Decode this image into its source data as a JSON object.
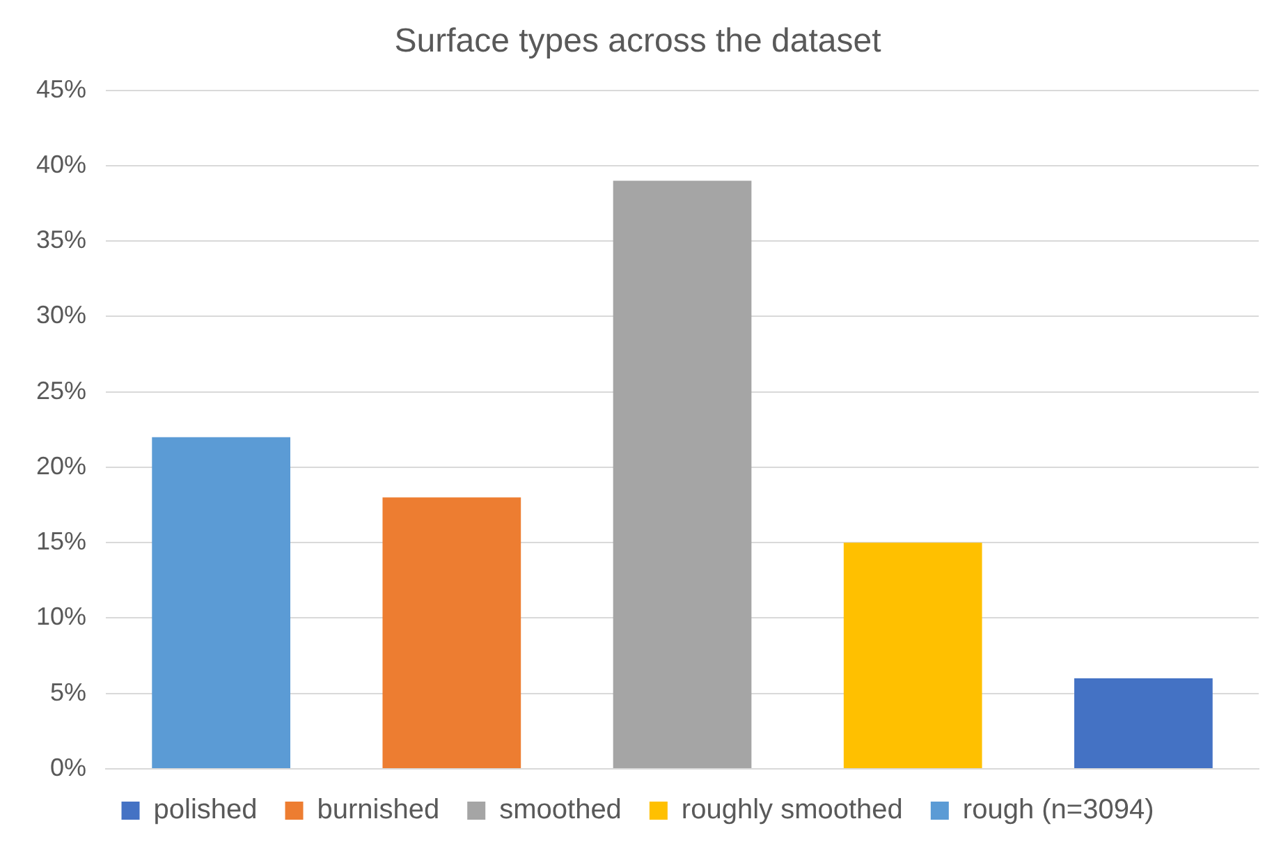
{
  "chart_data": {
    "type": "bar",
    "title": "Surface types across the dataset",
    "categories": [
      null,
      null,
      null,
      null,
      null
    ],
    "series": [
      {
        "name": "polished",
        "color": "#4472c4",
        "values": [
          null,
          null,
          null,
          null,
          6
        ]
      },
      {
        "name": "burnished",
        "color": "#ed7d31",
        "values": [
          null,
          18,
          null,
          null,
          null
        ]
      },
      {
        "name": "smoothed",
        "color": "#a5a5a5",
        "values": [
          null,
          null,
          39,
          null,
          null
        ]
      },
      {
        "name": "roughly smoothed",
        "color": "#ffc000",
        "values": [
          null,
          null,
          null,
          15,
          null
        ]
      },
      {
        "name": "rough (n=3094)",
        "color": "#5b9bd5",
        "values": [
          22,
          null,
          null,
          null,
          null
        ]
      }
    ],
    "ylim": [
      0,
      45
    ],
    "yticks": [
      {
        "value": 0,
        "label": "0%"
      },
      {
        "value": 5,
        "label": "5%"
      },
      {
        "value": 10,
        "label": "10%"
      },
      {
        "value": 15,
        "label": "15%"
      },
      {
        "value": 20,
        "label": "20%"
      },
      {
        "value": 25,
        "label": "25%"
      },
      {
        "value": 30,
        "label": "30%"
      },
      {
        "value": 35,
        "label": "35%"
      },
      {
        "value": 40,
        "label": "40%"
      },
      {
        "value": 45,
        "label": "45%"
      }
    ],
    "grid": "y",
    "legend": "bottom"
  }
}
